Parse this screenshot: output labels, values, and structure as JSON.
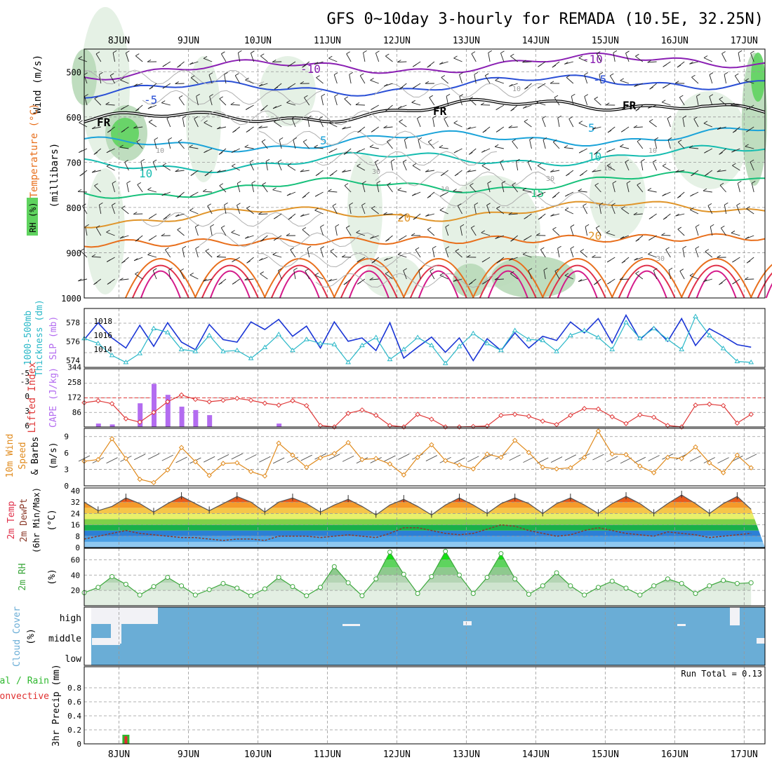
{
  "title": "GFS 0~10day 3-hourly for REMADA (10.5E, 32.25N)",
  "colors": {
    "temp_purple": "#8a1fb3",
    "temp_blue": "#2a4fd6",
    "temp_cyan": "#1aa3d9",
    "temp_teal": "#16bcb0",
    "temp_green": "#16c07a",
    "temp_orange": "#e0952a",
    "temp_darkorange": "#e86f1c",
    "temp_red": "#e0304a",
    "temp_magenta": "#d41a8a",
    "rh_light": "#e2f0e2",
    "rh_mid": "#b8d9b8",
    "rh_dark": "#8fbf8f",
    "rh_bright": "#5fd35f",
    "slp": "#1b36d6",
    "thickness": "#2ab8c8",
    "li": "#e03a3a",
    "cape": "#b36cf0",
    "wind_speed": "#e08a1c",
    "barb": "#555555",
    "dewpt": "#8b3a2a",
    "rh2m": "#3ea83e",
    "cloud": "#6aadd6",
    "precip_green": "#2fb82f",
    "precip_red": "#e03030",
    "grid": "#999999"
  },
  "chart_data": [
    {
      "id": "pressure-time",
      "type": "heatmap",
      "title": "GFS 0~10day 3-hourly for REMADA (10.5E, 32.25N)",
      "xlabel": "",
      "ylabel": "(millibars)",
      "side_labels": [
        "Wind (m/s)",
        "Temperature (°C)",
        "RH (%)"
      ],
      "x_day_labels": [
        "8JUN",
        "9JUN",
        "10JUN",
        "11JUN",
        "12JUN",
        "13JUN",
        "14JUN",
        "15JUN",
        "16JUN",
        "17JUN"
      ],
      "x_range_days": [
        7.5,
        17.3
      ],
      "y_ticks": [
        500,
        600,
        700,
        800,
        900,
        1000
      ],
      "ylim": [
        450,
        1000
      ],
      "isotherms": [
        {
          "label": "-10",
          "color_key": "temp_purple",
          "base_p": 500
        },
        {
          "label": "-5",
          "color_key": "temp_blue",
          "base_p": 545
        },
        {
          "label": "FR",
          "color_key": "freezing",
          "base_p": 612
        },
        {
          "label": "5",
          "color_key": "temp_cyan",
          "base_p": 665
        },
        {
          "label": "10",
          "color_key": "temp_teal",
          "base_p": 708
        },
        {
          "label": "15",
          "color_key": "temp_green",
          "base_p": 765
        },
        {
          "label": "20",
          "color_key": "temp_orange",
          "base_p": 825
        }
      ],
      "contour_labels": [
        "-10",
        "-10",
        "-5",
        "-5",
        "FR",
        "FR",
        "FR",
        "5",
        "5",
        "10",
        "10",
        "15",
        "20",
        "20",
        "10",
        "30",
        "10",
        "30",
        "10",
        "30",
        "10",
        "10"
      ]
    },
    {
      "id": "slp-thickness",
      "type": "line",
      "ylabel_left": "Thickness (dm)",
      "ylabel_left2": "1000-500mb",
      "ylabel_right": "SLP (mb)",
      "left_ticks": [
        "574",
        "576",
        "578"
      ],
      "right_ticks": [
        "1014",
        "1016",
        "1018"
      ],
      "series": [
        {
          "name": "SLP (mb)",
          "color_key": "slp",
          "ylim": [
            1012.5,
            1019.5
          ],
          "values": [
            1015.8,
            1017.8,
            1016.0,
            1014.8,
            1017.5,
            1015.0,
            1017.8,
            1015.5,
            1014.6,
            1017.6,
            1015.8,
            1015.5,
            1017.9,
            1017.0,
            1018.2,
            1016.2,
            1017.4,
            1014.8,
            1017.9,
            1015.6,
            1016.0,
            1014.5,
            1017.8,
            1013.6,
            1014.9,
            1016.1,
            1014.3,
            1016.0,
            1013.3,
            1015.9,
            1014.5,
            1016.6,
            1014.8,
            1016.2,
            1015.7,
            1017.9,
            1016.6,
            1018.3,
            1015.4,
            1018.7,
            1015.8,
            1017.3,
            1015.6,
            1018.3,
            1015.1,
            1017.1,
            1016.2,
            1015.2,
            1014.9
          ]
        },
        {
          "name": "1000-500mb Thickness (dm)",
          "color_key": "thickness",
          "ylim": [
            573.6,
            579.5
          ],
          "values": [
            576.5,
            576.0,
            574.8,
            574.1,
            575.0,
            577.5,
            577.1,
            575.4,
            575.2,
            576.8,
            575.2,
            575.3,
            574.5,
            575.6,
            576.9,
            575.3,
            576.4,
            576.0,
            575.9,
            574.1,
            575.8,
            576.6,
            574.4,
            575.4,
            576.6,
            575.8,
            574.0,
            575.7,
            577.0,
            576.0,
            575.3,
            577.3,
            576.4,
            576.3,
            575.2,
            576.8,
            577.3,
            576.6,
            575.4,
            578.1,
            576.5,
            577.5,
            576.4,
            575.4,
            578.7,
            576.8,
            575.5,
            574.2,
            574.1
          ]
        }
      ]
    },
    {
      "id": "li-cape",
      "type": "bar",
      "ylabel_left": "Lifted Index",
      "ylabel_right": "CAPE (J/kg)",
      "li_ticks": [
        "-3",
        "0",
        "3",
        "6"
      ],
      "cape_ticks": [
        "86",
        "172",
        "258",
        "344"
      ],
      "li_top_label": "-5",
      "series": [
        {
          "name": "Lifted Index",
          "color_key": "li",
          "ylim": [
            6,
            -6
          ],
          "values": [
            1.0,
            0.6,
            1.2,
            4.3,
            5.0,
            3.0,
            0.8,
            -0.6,
            0.3,
            0.8,
            0.5,
            0.1,
            0.5,
            1.1,
            1.5,
            0.6,
            1.6,
            5.7,
            6.0,
            3.2,
            2.5,
            3.6,
            5.7,
            6.0,
            3.4,
            4.4,
            6.0,
            6.0,
            5.9,
            5.8,
            3.6,
            3.4,
            3.8,
            4.8,
            5.5,
            3.6,
            2.2,
            2.3,
            3.9,
            5.3,
            3.5,
            4.0,
            5.7,
            6.0,
            1.5,
            1.3,
            1.6,
            5.2,
            3.4
          ]
        },
        {
          "name": "CAPE (J/kg)",
          "color_key": "cape",
          "ylim": [
            0,
            344
          ],
          "values": [
            0,
            20,
            15,
            0,
            140,
            255,
            190,
            120,
            100,
            70,
            0,
            0,
            0,
            0,
            20,
            0,
            0,
            0,
            0,
            0,
            0,
            0,
            0,
            0,
            0,
            0,
            0,
            0,
            0,
            0,
            0,
            0,
            0,
            0,
            0,
            0,
            0,
            0,
            0,
            0,
            0,
            0,
            0,
            0,
            0,
            0,
            0,
            0,
            0
          ]
        }
      ]
    },
    {
      "id": "wind10m",
      "type": "line",
      "ylabel": "10m Wind Speed & Barbs (m/s)",
      "y_ticks": [
        "0",
        "3",
        "6",
        "9"
      ],
      "ylim": [
        0,
        10.5
      ],
      "series": [
        {
          "name": "10m Wind Speed (m/s)",
          "color_key": "wind_speed",
          "values": [
            4.5,
            4.8,
            8.6,
            5.0,
            1.2,
            0.6,
            2.9,
            7.0,
            4.4,
            1.9,
            4.1,
            4.2,
            2.6,
            1.8,
            7.8,
            5.6,
            3.4,
            5.1,
            5.9,
            7.9,
            4.8,
            5.0,
            4.0,
            2.0,
            5.2,
            7.5,
            4.6,
            3.8,
            3.1,
            5.8,
            5.2,
            8.3,
            6.1,
            3.4,
            3.1,
            3.3,
            5.2,
            10.0,
            5.8,
            5.7,
            3.6,
            2.4,
            5.2,
            5.0,
            7.1,
            4.2,
            2.4,
            5.6,
            3.3
          ]
        }
      ]
    },
    {
      "id": "temp2m",
      "type": "area",
      "ylabel": "2m Temp 2m DewPt (6hr Min/Max) (°C)",
      "y_ticks": [
        "0",
        "8",
        "16",
        "24",
        "32",
        "40"
      ],
      "ylim": [
        0,
        42
      ],
      "series": [
        {
          "name": "2m Temp (°C)",
          "color_key": "temp_red",
          "values": [
            32,
            26,
            29,
            35,
            31,
            25,
            31,
            36,
            31,
            26,
            31,
            36,
            32,
            25,
            32,
            35,
            31,
            25,
            30,
            34,
            29,
            23,
            30,
            34,
            29,
            23,
            30,
            35,
            30,
            24,
            31,
            35,
            31,
            24,
            31,
            35,
            30,
            24,
            31,
            36,
            31,
            24,
            31,
            37,
            31,
            24,
            31,
            36,
            27
          ]
        },
        {
          "name": "2m DewPt (°C)",
          "color_key": "dewpt",
          "values": [
            6,
            8,
            10,
            12,
            10,
            9,
            8,
            7,
            7,
            6,
            5,
            6,
            6,
            5,
            8,
            8,
            8,
            7,
            8,
            9,
            8,
            7,
            10,
            14,
            14,
            12,
            10,
            9,
            10,
            13,
            16,
            15,
            12,
            10,
            8,
            9,
            12,
            14,
            12,
            10,
            9,
            8,
            11,
            10,
            9,
            7,
            8,
            9,
            10
          ]
        }
      ]
    },
    {
      "id": "rh2m",
      "type": "area",
      "ylabel": "2m RH (%)",
      "y_ticks": [
        "20",
        "40",
        "60"
      ],
      "ylim": [
        0,
        75
      ],
      "series": [
        {
          "name": "2m RH (%)",
          "color_key": "rh2m",
          "values": [
            17,
            24,
            38,
            28,
            14,
            25,
            37,
            26,
            14,
            21,
            29,
            23,
            13,
            22,
            37,
            25,
            13,
            24,
            51,
            30,
            13,
            35,
            70,
            41,
            16,
            38,
            71,
            40,
            16,
            37,
            68,
            35,
            15,
            26,
            43,
            26,
            14,
            24,
            32,
            23,
            14,
            26,
            35,
            29,
            16,
            26,
            33,
            29,
            30
          ]
        }
      ]
    },
    {
      "id": "cloud",
      "type": "heatmap",
      "ylabel": "Cloud Cover (%)",
      "levels": [
        "high",
        "middle",
        "low"
      ]
    },
    {
      "id": "precip",
      "type": "bar",
      "ylabel": "3hr Precip (mm)",
      "legend": [
        "Total / Rain",
        "Convective"
      ],
      "y_ticks": [
        "0",
        "0.2",
        "0.4",
        "0.6",
        "0.8"
      ],
      "ylim": [
        0,
        1
      ],
      "run_total": "Run Total = 0.13",
      "bars": [
        {
          "day": 8.1,
          "total": 0.13,
          "convective": 0.11
        }
      ]
    }
  ]
}
